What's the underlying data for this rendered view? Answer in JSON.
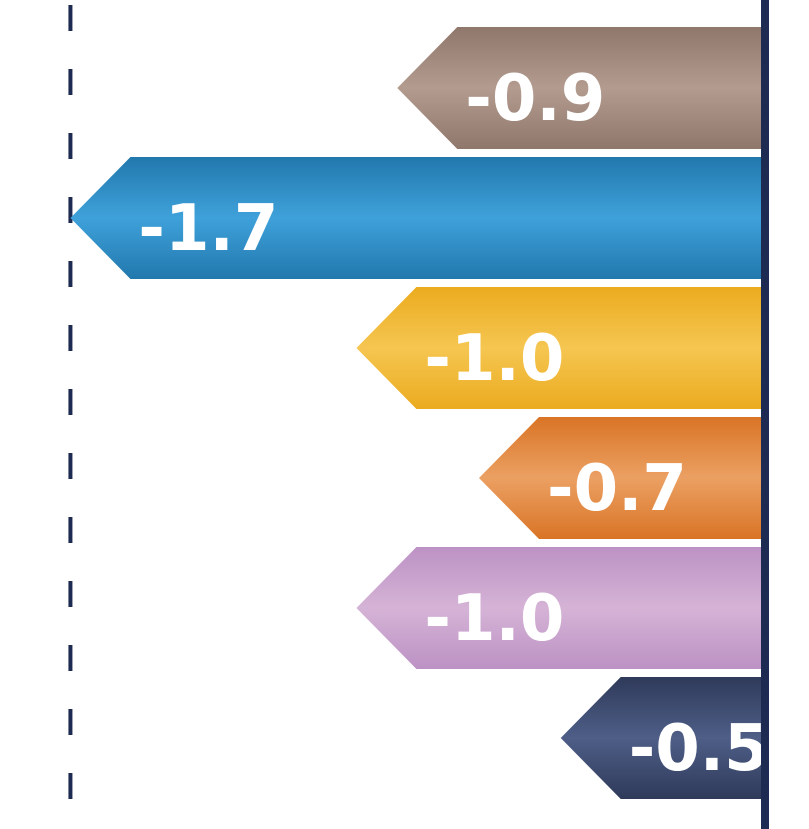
{
  "chart_data": {
    "type": "bar",
    "orientation": "horizontal",
    "x_range": [
      -1.75,
      0
    ],
    "reference_line_value": -1.7,
    "grid": false,
    "legend": "none",
    "bars": [
      {
        "value": -0.9,
        "label": "-0.9",
        "color_light": "#b39b8f",
        "color_dark": "#8f776b"
      },
      {
        "value": -1.7,
        "label": "-1.7",
        "color_light": "#3fa1da",
        "color_dark": "#2178ad"
      },
      {
        "value": -1.0,
        "label": "-1.0",
        "color_light": "#f5c651",
        "color_dark": "#ebab1f"
      },
      {
        "value": -0.7,
        "label": "-0.7",
        "color_light": "#eba063",
        "color_dark": "#d97425"
      },
      {
        "value": -1.0,
        "label": "-1.0",
        "color_light": "#d5b3d6",
        "color_dark": "#bc92c4"
      },
      {
        "value": -0.5,
        "label": "-0.5",
        "color_light": "#4e5e87",
        "color_dark": "#2f3a5a"
      }
    ],
    "axis_color": "#1d2b53",
    "reference_line_color": "#1d2b53"
  }
}
